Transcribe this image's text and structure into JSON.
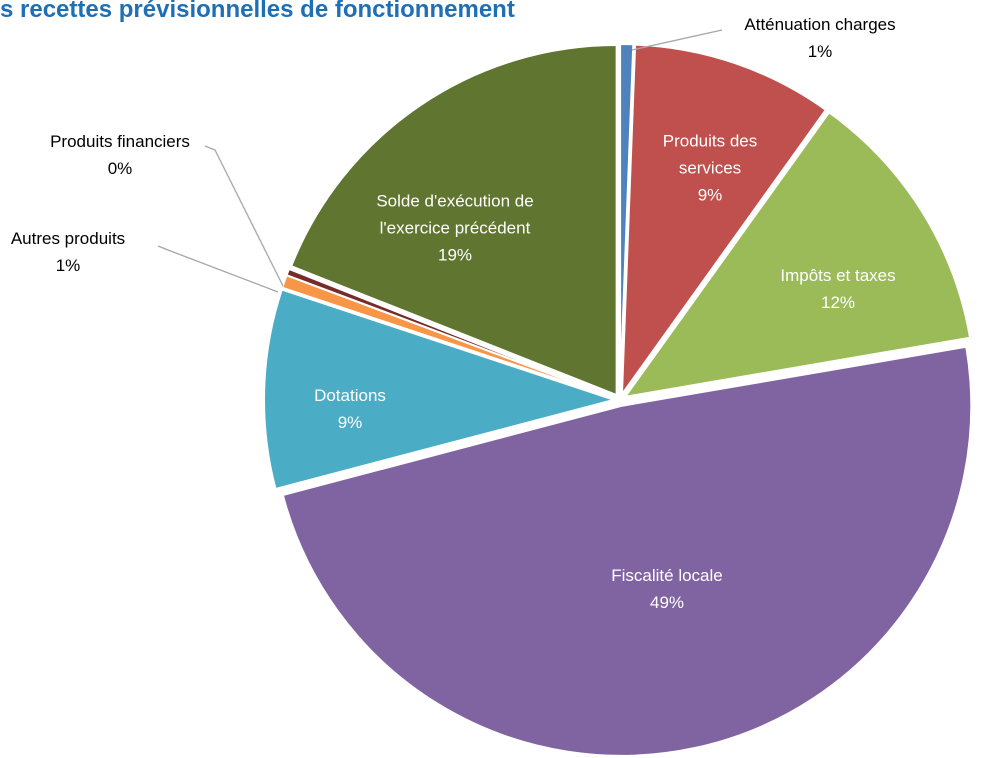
{
  "chart_data": {
    "type": "pie",
    "title": "s recettes prévisionnelles de fonctionnement",
    "categories": [
      "Atténuation charges",
      "Produits des services",
      "Impôts et taxes",
      "Fiscalité locale",
      "Dotations",
      "Autres produits",
      "Produits financiers",
      "Solde d'exécution de l'exercice précédent"
    ],
    "values": [
      0.6,
      9.3,
      12.4,
      48.6,
      9.2,
      0.6,
      0.3,
      19.0
    ],
    "value_labels": [
      "1%",
      "9%",
      "12%",
      "49%",
      "9%",
      "1%",
      "0%",
      "19%"
    ],
    "colors": [
      "#4f81bd",
      "#c0504d",
      "#9bbb59",
      "#8064a2",
      "#4bacc6",
      "#f79646",
      "#772c2a",
      "#5f7530"
    ]
  }
}
